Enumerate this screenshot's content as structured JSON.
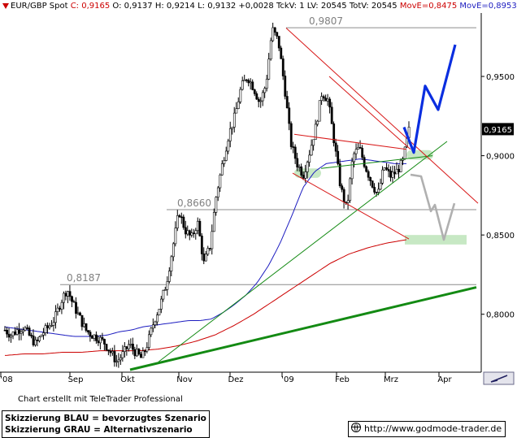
{
  "header": {
    "symbol": "EUR/GBP Spot",
    "close": "C: 0,9165",
    "open": "O: 0,9137",
    "high": "H: 0,9214",
    "low": "L: 0,9132",
    "change": "+0,0028",
    "tick_vol": "TckV: 1",
    "last_vol": "LV: 20545",
    "total_vol": "TotV: 20545",
    "move_red": "MovE=0,8475",
    "move_blue": "MovE=0,8953"
  },
  "colors": {
    "candle": "#000000",
    "ma_blue": "#1c1cc0",
    "ma_red": "#cc0000",
    "trend_green": "#138a13",
    "channel_red": "#d81818",
    "scenario_blue": "#0a2ee0",
    "scenario_gray": "#b0b0b0",
    "zone_green": "#c7e8c4",
    "level_line": "#8c8c8c"
  },
  "chart_data": {
    "type": "candlestick",
    "title": "",
    "x_labels": [
      "'08",
      "Sep",
      "Okt",
      "Nov",
      "Dez",
      "'09",
      "Feb",
      "Mrz",
      "Apr"
    ],
    "y_ticks": [
      "0,8000",
      "0,8500",
      "0,9000",
      "0,9500"
    ],
    "ylim": [
      0.765,
      0.99
    ],
    "last_price_label": "0,9165",
    "levels": [
      {
        "label": "0,9807",
        "value": 0.9807
      },
      {
        "label": "0,8660",
        "value": 0.866
      },
      {
        "label": "0,8187",
        "value": 0.8187
      }
    ],
    "price_path_approx": [
      0.79,
      0.787,
      0.79,
      0.792,
      0.786,
      0.781,
      0.788,
      0.792,
      0.797,
      0.808,
      0.816,
      0.806,
      0.798,
      0.79,
      0.787,
      0.785,
      0.782,
      0.776,
      0.77,
      0.775,
      0.781,
      0.776,
      0.772,
      0.782,
      0.796,
      0.806,
      0.82,
      0.842,
      0.865,
      0.853,
      0.848,
      0.858,
      0.832,
      0.843,
      0.875,
      0.895,
      0.913,
      0.925,
      0.943,
      0.95,
      0.943,
      0.933,
      0.945,
      0.98,
      0.972,
      0.943,
      0.908,
      0.895,
      0.888,
      0.902,
      0.918,
      0.94,
      0.935,
      0.908,
      0.88,
      0.866,
      0.9,
      0.905,
      0.893,
      0.883,
      0.875,
      0.893,
      0.887,
      0.89,
      0.896,
      0.916
    ],
    "ma_blue_path_approx": [
      0.792,
      0.791,
      0.79,
      0.789,
      0.788,
      0.787,
      0.786,
      0.786,
      0.786,
      0.787,
      0.789,
      0.79,
      0.792,
      0.793,
      0.794,
      0.795,
      0.796,
      0.796,
      0.797,
      0.801,
      0.806,
      0.812,
      0.82,
      0.831,
      0.845,
      0.862,
      0.88,
      0.89,
      0.895,
      0.896,
      0.897,
      0.898,
      0.897,
      0.896,
      0.895,
      0.895
    ],
    "ma_red_path_approx": [
      0.774,
      0.775,
      0.775,
      0.776,
      0.776,
      0.777,
      0.777,
      0.777,
      0.778,
      0.78,
      0.783,
      0.787,
      0.793,
      0.8,
      0.808,
      0.816,
      0.824,
      0.832,
      0.838,
      0.842,
      0.845,
      0.847
    ],
    "annotations": {
      "green_trend_lines": 3,
      "red_lines": 4,
      "blue_scenario": "rise toward 0,96",
      "gray_scenario": "decline toward 0,85"
    }
  },
  "footer": {
    "credit": "Chart erstellt mit TeleTrader Professional",
    "legend_blue": "Skizzierung BLAU = bevorzugtes Szenario",
    "legend_gray": "Skizzierung GRAU = Alternativszenario",
    "website": "http://www.godmode-trader.de"
  }
}
